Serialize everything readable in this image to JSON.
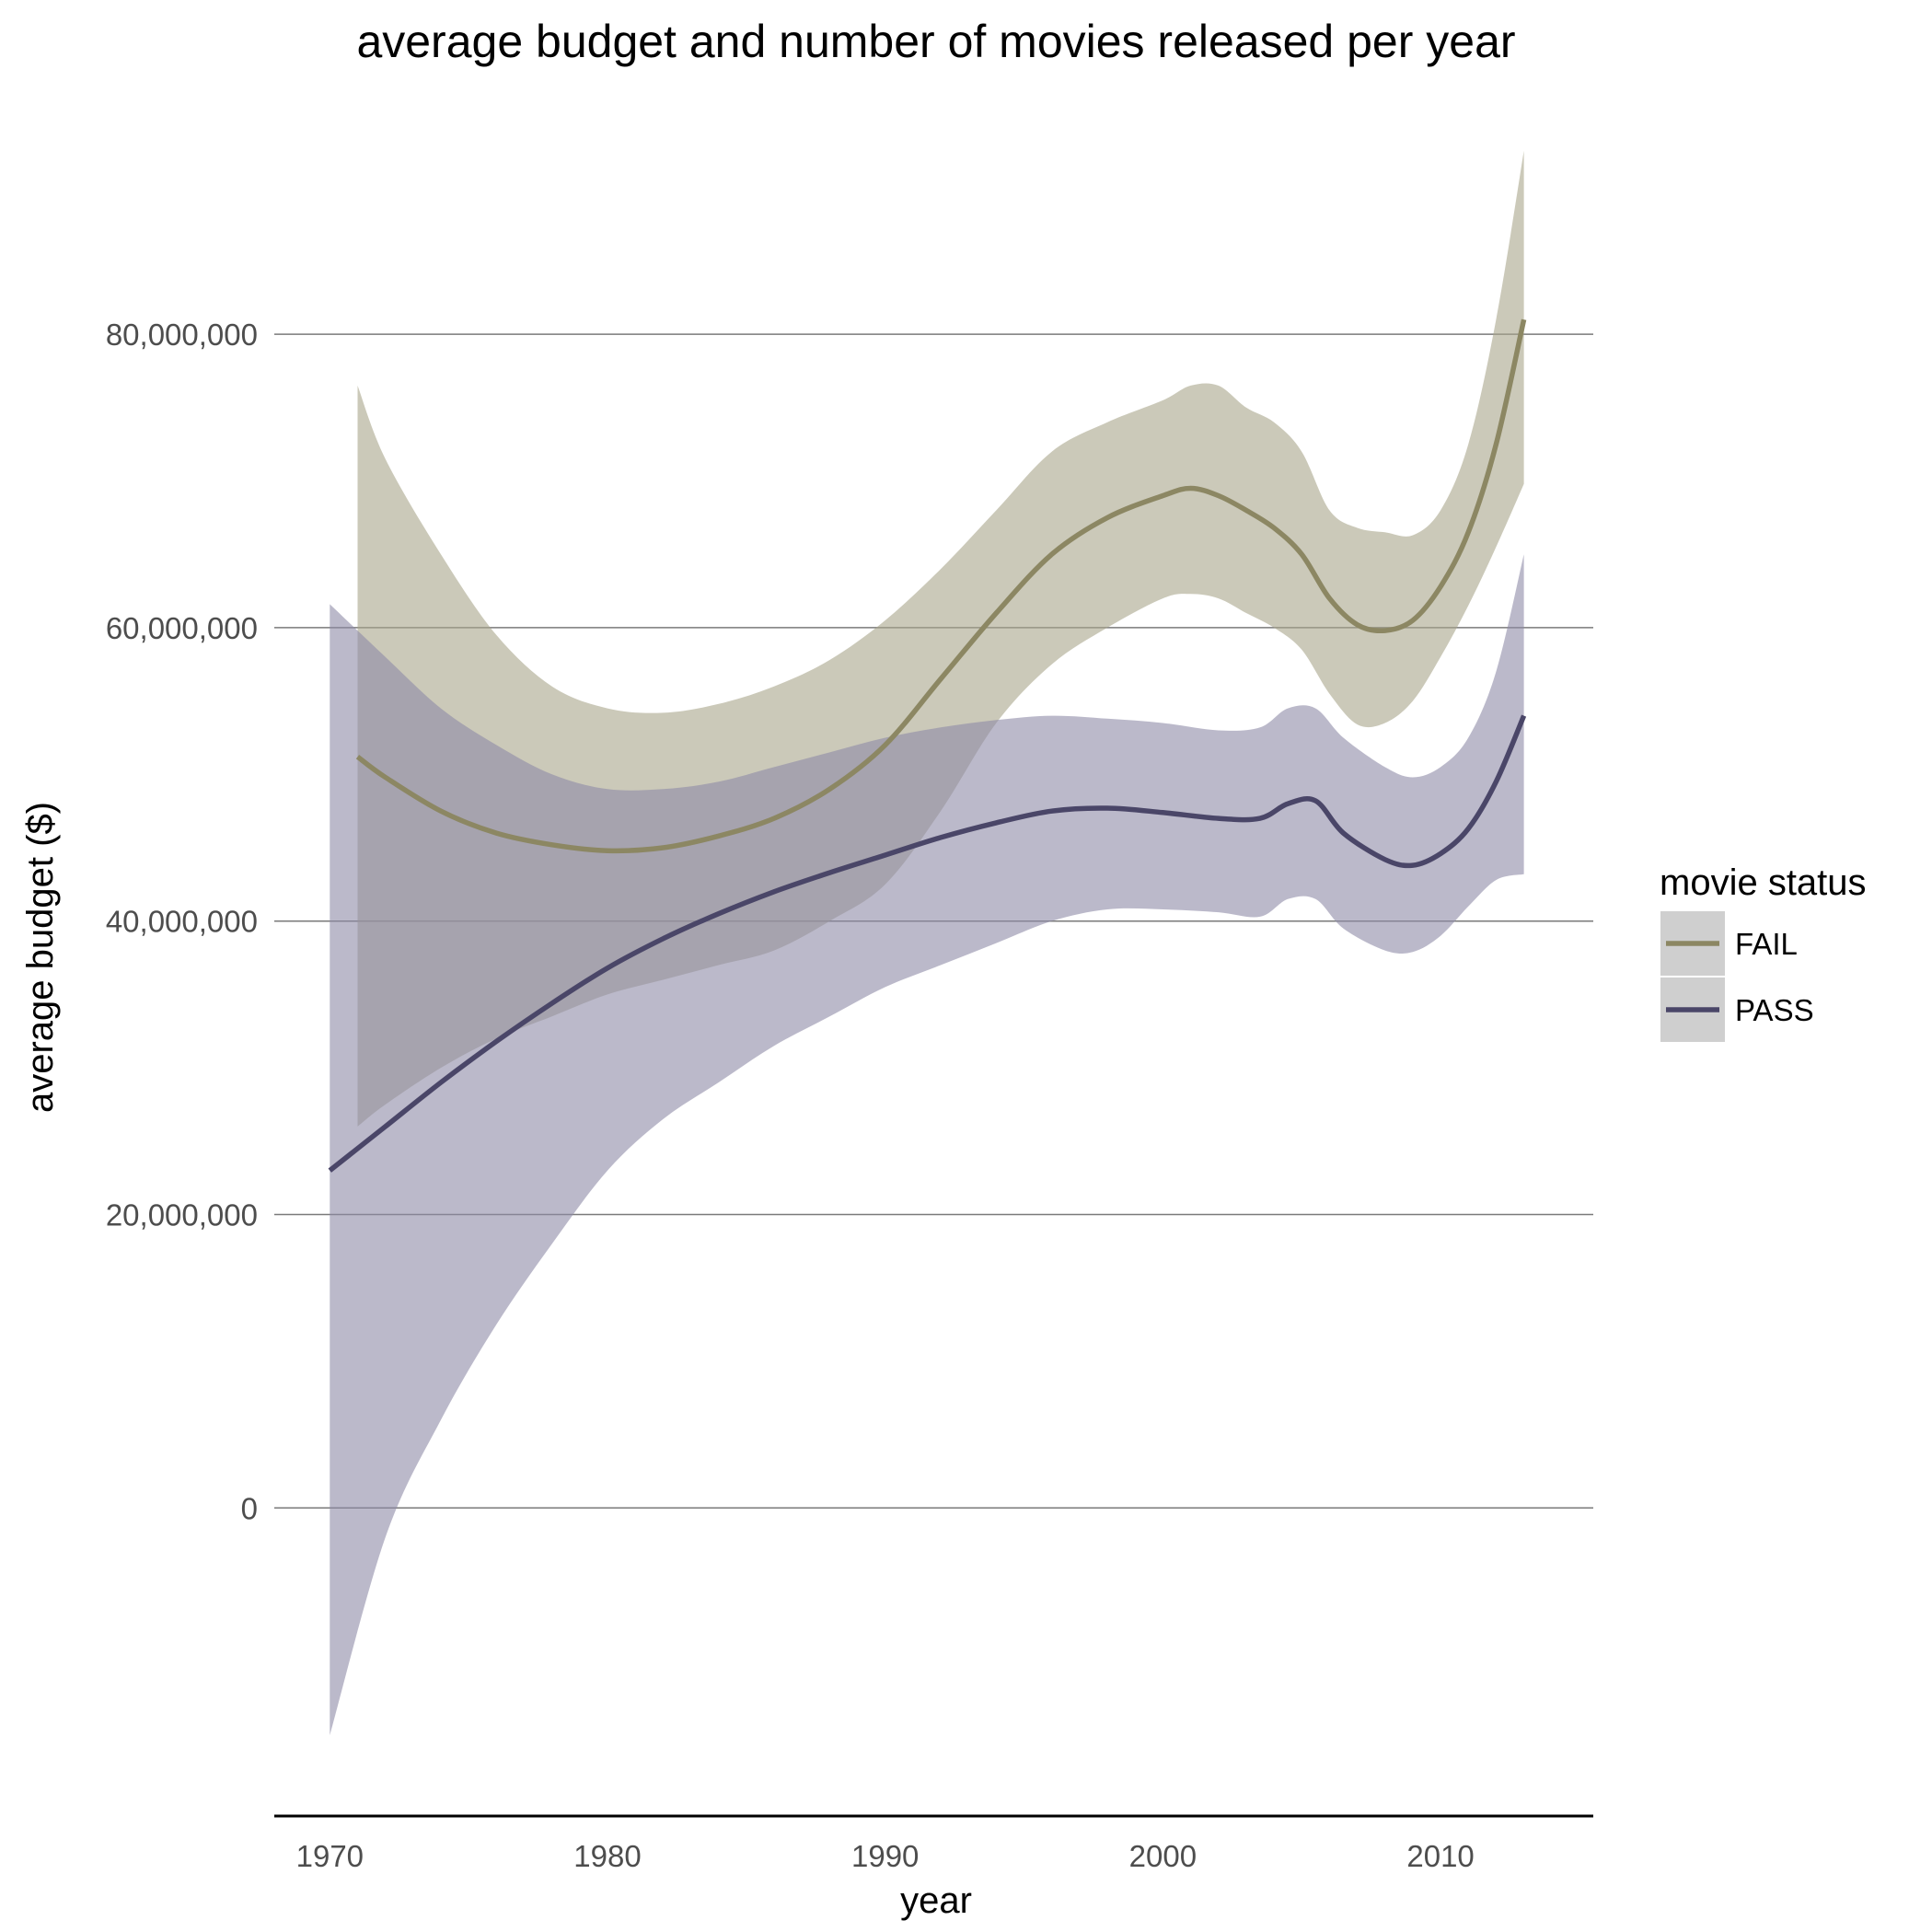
{
  "chart_data": {
    "type": "line",
    "title": "average budget and number of movies released per year",
    "xlabel": "year",
    "ylabel": "average budget ($)",
    "xlim": [
      1968.0,
      2015.5
    ],
    "ylim": [
      -21000000,
      94000000
    ],
    "x_ticks": [
      1970,
      1980,
      1990,
      2000,
      2010
    ],
    "x_tick_labels": [
      "1970",
      "1980",
      "1990",
      "2000",
      "2010"
    ],
    "y_ticks": [
      0,
      20000000,
      40000000,
      60000000,
      80000000
    ],
    "y_tick_labels": [
      "0",
      "20,000,000",
      "40,000,000",
      "60,000,000",
      "80,000,000"
    ],
    "grid": "horizontal major",
    "legend": {
      "title": "movie status",
      "placement": "right",
      "items": [
        "FAIL",
        "PASS"
      ]
    },
    "series": [
      {
        "name": "FAIL",
        "color": "#8c8763",
        "band_color": "#a8a58a",
        "x": [
          1971,
          1972,
          1974,
          1976,
          1978,
          1980,
          1982,
          1984,
          1986,
          1988,
          1990,
          1992,
          1994,
          1996,
          1998,
          2000,
          2001,
          2002,
          2003,
          2004,
          2005,
          2006,
          2007,
          2008,
          2009,
          2010,
          2011,
          2012,
          2013
        ],
        "y": [
          51200000,
          49800000,
          47500000,
          46000000,
          45200000,
          44800000,
          45000000,
          45800000,
          47000000,
          49000000,
          52000000,
          56500000,
          61000000,
          65000000,
          67500000,
          69000000,
          69500000,
          69000000,
          68000000,
          66800000,
          65000000,
          62000000,
          60200000,
          59800000,
          60500000,
          62800000,
          66500000,
          72500000,
          81000000
        ],
        "lower": [
          26000000,
          27500000,
          30000000,
          32000000,
          33500000,
          35000000,
          36000000,
          37000000,
          38000000,
          40000000,
          42500000,
          47500000,
          53500000,
          57500000,
          60000000,
          62000000,
          62300000,
          62000000,
          61000000,
          60000000,
          58500000,
          55500000,
          53400000,
          53500000,
          55000000,
          58000000,
          61500000,
          65500000,
          69800000
        ],
        "upper": [
          76500000,
          71500000,
          65000000,
          59500000,
          56000000,
          54500000,
          54200000,
          54800000,
          56000000,
          57800000,
          60500000,
          64000000,
          68000000,
          72000000,
          74000000,
          75500000,
          76500000,
          76500000,
          75000000,
          74000000,
          72000000,
          68000000,
          66800000,
          66500000,
          66300000,
          68000000,
          72500000,
          81000000,
          92500000
        ]
      },
      {
        "name": "PASS",
        "color": "#4a4668",
        "band_color": "#8d8aa6",
        "x": [
          1970,
          1972,
          1974,
          1976,
          1978,
          1980,
          1982,
          1984,
          1986,
          1988,
          1990,
          1992,
          1994,
          1996,
          1998,
          2000,
          2002,
          2003.5,
          2004.5,
          2005.5,
          2006.5,
          2008,
          2009,
          2010,
          2011,
          2012,
          2013
        ],
        "y": [
          23000000,
          26000000,
          29000000,
          31800000,
          34400000,
          36800000,
          38800000,
          40500000,
          42000000,
          43300000,
          44500000,
          45700000,
          46700000,
          47500000,
          47700000,
          47400000,
          47000000,
          47000000,
          48000000,
          48200000,
          46000000,
          44200000,
          43800000,
          44600000,
          46300000,
          49500000,
          54000000
        ],
        "lower": [
          -15500000,
          -2000000,
          6000000,
          12500000,
          18000000,
          23000000,
          26500000,
          29000000,
          31500000,
          33500000,
          35500000,
          37000000,
          38500000,
          40000000,
          40800000,
          40800000,
          40600000,
          40300000,
          41500000,
          41500000,
          39500000,
          38000000,
          37900000,
          39000000,
          41000000,
          42800000,
          43200000
        ],
        "upper": [
          61600000,
          58000000,
          54500000,
          52000000,
          50000000,
          49000000,
          49000000,
          49500000,
          50500000,
          51500000,
          52500000,
          53200000,
          53700000,
          54000000,
          53800000,
          53500000,
          53000000,
          53200000,
          54500000,
          54500000,
          52500000,
          50500000,
          49800000,
          50500000,
          52500000,
          57000000,
          65000000
        ]
      }
    ]
  }
}
